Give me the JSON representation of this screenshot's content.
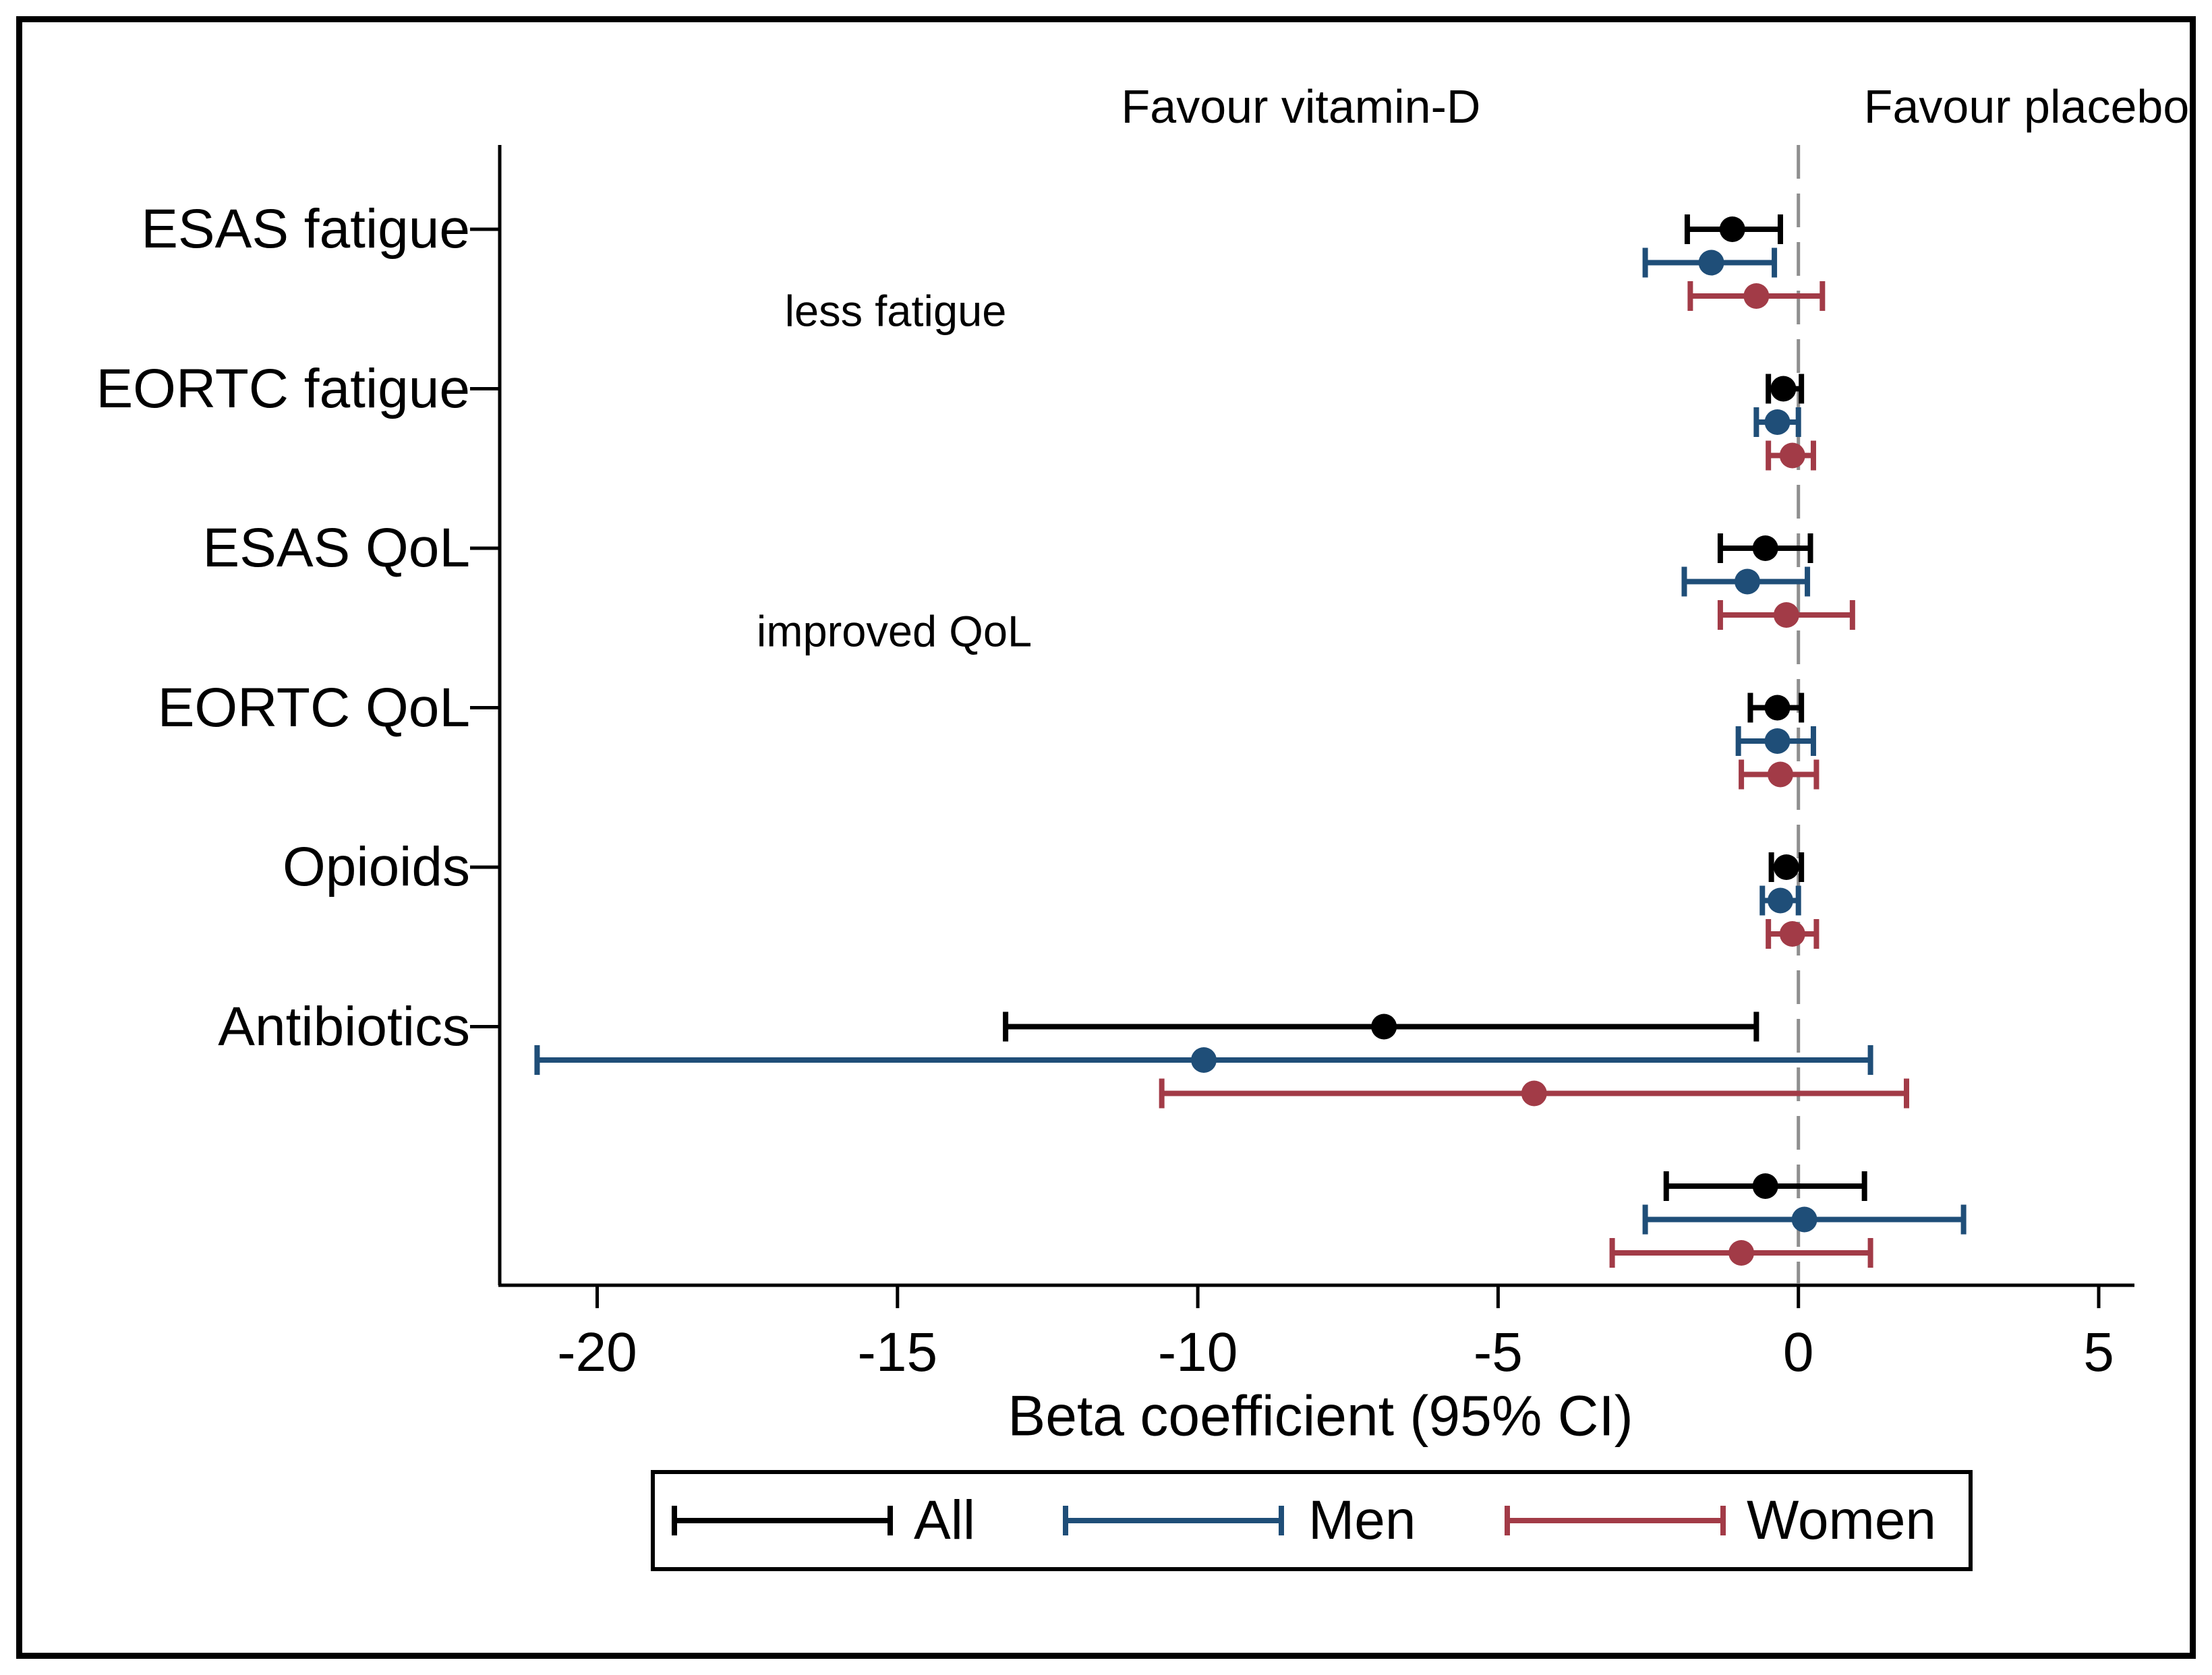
{
  "chart_data": {
    "type": "forest",
    "favour_left": "Favour vitamin-D",
    "favour_right": "Favour placebo",
    "annotations": [
      {
        "text": "less fatigue"
      },
      {
        "text": "improved QoL"
      }
    ],
    "xlabel": "Beta coefficient (95% CI)",
    "x_ticks": [
      -20,
      -15,
      -10,
      -5,
      0,
      5
    ],
    "xlim": [
      -21.6,
      5.6
    ],
    "zero_line": 0,
    "grid": false,
    "legend_position": "bottom",
    "groups": [
      {
        "name": "All",
        "color": "#000000"
      },
      {
        "name": "Men",
        "color": "#1f4e78"
      },
      {
        "name": "Women",
        "color": "#a23b47"
      }
    ],
    "categories": [
      {
        "label": "ESAS fatigue",
        "estimates": [
          {
            "group": "All",
            "est": -1.1,
            "lo": -1.85,
            "hi": -0.3
          },
          {
            "group": "Men",
            "est": -1.45,
            "lo": -2.55,
            "hi": -0.4
          },
          {
            "group": "Women",
            "est": -0.7,
            "lo": -1.8,
            "hi": 0.4
          }
        ]
      },
      {
        "label": "EORTC fatigue",
        "estimates": [
          {
            "group": "All",
            "est": -0.25,
            "lo": -0.5,
            "hi": 0.05
          },
          {
            "group": "Men",
            "est": -0.35,
            "lo": -0.7,
            "hi": 0.0
          },
          {
            "group": "Women",
            "est": -0.1,
            "lo": -0.5,
            "hi": 0.25
          }
        ]
      },
      {
        "label": "ESAS QoL",
        "estimates": [
          {
            "group": "All",
            "est": -0.55,
            "lo": -1.3,
            "hi": 0.2
          },
          {
            "group": "Men",
            "est": -0.85,
            "lo": -1.9,
            "hi": 0.15
          },
          {
            "group": "Women",
            "est": -0.2,
            "lo": -1.3,
            "hi": 0.9
          }
        ]
      },
      {
        "label": "EORTC QoL",
        "estimates": [
          {
            "group": "All",
            "est": -0.35,
            "lo": -0.8,
            "hi": 0.05
          },
          {
            "group": "Men",
            "est": -0.35,
            "lo": -1.0,
            "hi": 0.25
          },
          {
            "group": "Women",
            "est": -0.3,
            "lo": -0.95,
            "hi": 0.3
          }
        ]
      },
      {
        "label": "Opioids",
        "estimates": [
          {
            "group": "All",
            "est": -0.2,
            "lo": -0.45,
            "hi": 0.05
          },
          {
            "group": "Men",
            "est": -0.3,
            "lo": -0.6,
            "hi": 0.0
          },
          {
            "group": "Women",
            "est": -0.1,
            "lo": -0.5,
            "hi": 0.3
          }
        ]
      },
      {
        "label": "Antibiotics",
        "estimates": [
          {
            "group": "All",
            "est": -6.9,
            "lo": -13.2,
            "hi": -0.7
          },
          {
            "group": "Men",
            "est": -9.9,
            "lo": -21.0,
            "hi": 1.2
          },
          {
            "group": "Women",
            "est": -4.4,
            "lo": -10.6,
            "hi": 1.8
          }
        ]
      },
      {
        "label": "",
        "estimates": [
          {
            "group": "All",
            "est": -0.55,
            "lo": -2.2,
            "hi": 1.1
          },
          {
            "group": "Men",
            "est": 0.1,
            "lo": -2.55,
            "hi": 2.75
          },
          {
            "group": "Women",
            "est": -0.95,
            "lo": -3.1,
            "hi": 1.2
          }
        ]
      }
    ]
  }
}
